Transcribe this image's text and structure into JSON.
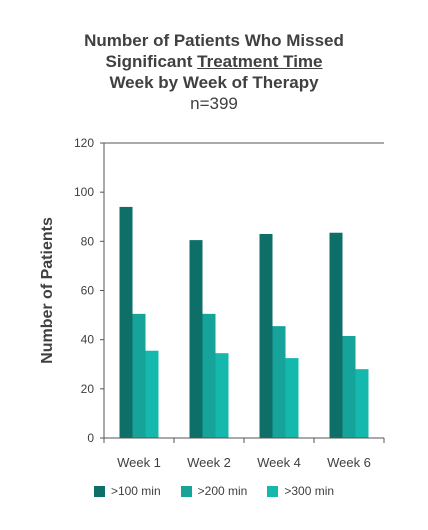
{
  "title": {
    "line1": "Number of Patients Who Missed",
    "line2_pre": "Significant ",
    "line2_underlined": "Treatment Time",
    "line3": "Week by Week of Therapy",
    "line4": "n=399"
  },
  "colors": [
    "#0e6e68",
    "#16a39a",
    "#14b8ad"
  ],
  "chart_data": {
    "type": "bar",
    "title": "Number of Patients Who Missed Significant Treatment Time Week by Week of Therapy",
    "subtitle": "n=399",
    "xlabel": "",
    "ylabel": "Number of Patients",
    "ylim": [
      0,
      120
    ],
    "yticks": [
      0,
      20,
      40,
      60,
      80,
      100,
      120
    ],
    "grid": false,
    "legend_position": "bottom",
    "categories": [
      "Week 1",
      "Week 2",
      "Week 4",
      "Week 6"
    ],
    "series": [
      {
        "name": ">100 min",
        "values": [
          94,
          80.5,
          83,
          83.5
        ]
      },
      {
        "name": ">200 min",
        "values": [
          50.5,
          50.5,
          45.5,
          41.5
        ]
      },
      {
        "name": ">300 min",
        "values": [
          35.5,
          34.5,
          32.5,
          28
        ]
      }
    ]
  }
}
